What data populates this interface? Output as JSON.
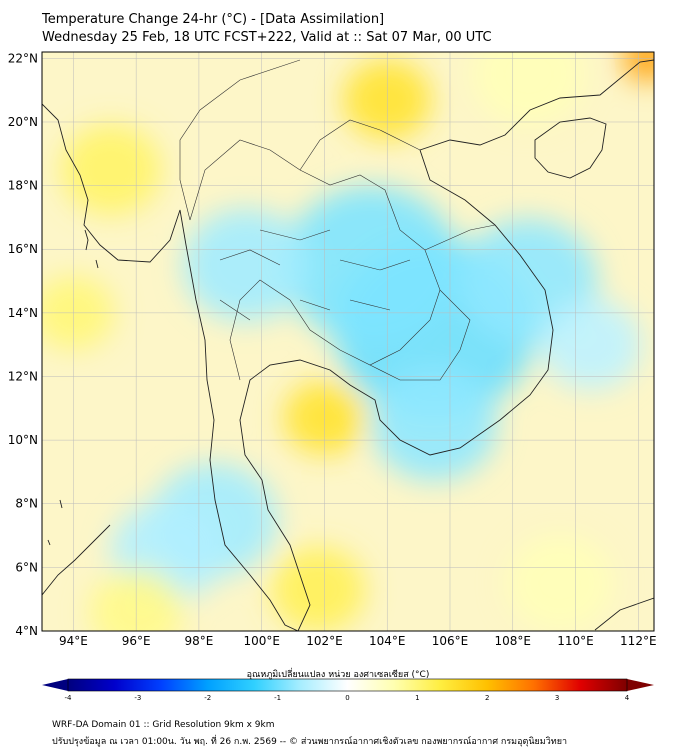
{
  "header": {
    "line1": "Temperature Change 24-hr (°C) - [Data Assimilation]",
    "line2": "Wednesday 25 Feb, 18 UTC FCST+222, Valid at :: Sat 07 Mar, 00 UTC"
  },
  "map": {
    "lon_range": [
      93,
      112.5
    ],
    "lat_range": [
      4,
      22.2
    ],
    "lat_ticks": [
      {
        "v": 22,
        "label": "22°N"
      },
      {
        "v": 20,
        "label": "20°N"
      },
      {
        "v": 18,
        "label": "18°N"
      },
      {
        "v": 16,
        "label": "16°N"
      },
      {
        "v": 14,
        "label": "14°N"
      },
      {
        "v": 12,
        "label": "12°N"
      },
      {
        "v": 10,
        "label": "10°N"
      },
      {
        "v": 8,
        "label": "8°N"
      },
      {
        "v": 6,
        "label": "6°N"
      },
      {
        "v": 4,
        "label": "4°N"
      }
    ],
    "lon_ticks": [
      {
        "v": 94,
        "label": "94°E"
      },
      {
        "v": 96,
        "label": "96°E"
      },
      {
        "v": 98,
        "label": "98°E"
      },
      {
        "v": 100,
        "label": "100°E"
      },
      {
        "v": 102,
        "label": "102°E"
      },
      {
        "v": 104,
        "label": "104°E"
      },
      {
        "v": 106,
        "label": "106°E"
      },
      {
        "v": 108,
        "label": "108°E"
      },
      {
        "v": 110,
        "label": "110°E"
      },
      {
        "v": 112,
        "label": "112°E"
      }
    ],
    "field_anomalies": [
      {
        "lon": 105.5,
        "lat": 13.5,
        "value": -1.0,
        "r": 3.2
      },
      {
        "lon": 103.5,
        "lat": 15.5,
        "value": -0.9,
        "r": 2.8
      },
      {
        "lon": 99.5,
        "lat": 15.5,
        "value": -0.7,
        "r": 2.0
      },
      {
        "lon": 108.5,
        "lat": 15.0,
        "value": -0.8,
        "r": 2.2
      },
      {
        "lon": 105.5,
        "lat": 10.5,
        "value": -0.8,
        "r": 2.0
      },
      {
        "lon": 98.5,
        "lat": 7.5,
        "value": -0.7,
        "r": 2.0
      },
      {
        "lon": 97.0,
        "lat": 6.5,
        "value": -0.6,
        "r": 1.8
      },
      {
        "lon": 110.5,
        "lat": 13.0,
        "value": -0.5,
        "r": 1.6
      },
      {
        "lon": 104.0,
        "lat": 20.7,
        "value": 1.5,
        "r": 1.4
      },
      {
        "lon": 112.3,
        "lat": 22.0,
        "value": 2.3,
        "r": 0.8
      },
      {
        "lon": 102.0,
        "lat": 10.7,
        "value": 1.5,
        "r": 1.3
      },
      {
        "lon": 95.2,
        "lat": 18.5,
        "value": 1.1,
        "r": 1.6
      },
      {
        "lon": 94.0,
        "lat": 14.0,
        "value": 1.0,
        "r": 1.3
      },
      {
        "lon": 101.8,
        "lat": 5.3,
        "value": 1.2,
        "r": 1.5
      },
      {
        "lon": 96.0,
        "lat": 4.6,
        "value": 0.9,
        "r": 1.5
      },
      {
        "lon": 109.5,
        "lat": 5.5,
        "value": 0.6,
        "r": 1.7
      },
      {
        "lon": 108.5,
        "lat": 21.5,
        "value": 0.6,
        "r": 1.8
      }
    ]
  },
  "colorbar": {
    "label": "อุณหภูมิเปลี่ยนแปลง หน่วย องศาเซลเซียส (°C)",
    "min": -4,
    "max": 4,
    "tick_labels": [
      {
        "v": -4,
        "label": "-4"
      },
      {
        "v": -3,
        "label": "-3"
      },
      {
        "v": -2,
        "label": "-2"
      },
      {
        "v": -1,
        "label": "-1"
      },
      {
        "v": 0,
        "label": "0"
      },
      {
        "v": 1,
        "label": "1"
      },
      {
        "v": 2,
        "label": "2"
      },
      {
        "v": 3,
        "label": "3"
      },
      {
        "v": 4,
        "label": "4"
      }
    ],
    "colors": [
      "#00007f",
      "#0000cc",
      "#0040ff",
      "#00a0ff",
      "#30d0ff",
      "#a8eeff",
      "#ffffff",
      "#ffffb0",
      "#ffee40",
      "#ffc000",
      "#ff7000",
      "#e00000",
      "#7f0000"
    ]
  },
  "footer": {
    "line1": "WRF-DA Domain 01 :: Grid Resolution 9km x 9km",
    "line2": "ปรับปรุงข้อมูล ณ เวลา 01:00น. วัน พฤ. ที่ 26 ก.พ. 2569 -- © ส่วนพยากรณ์อากาศเชิงตัวเลข กองพยากรณ์อากาศ กรมอุตุนิยมวิทยา"
  }
}
